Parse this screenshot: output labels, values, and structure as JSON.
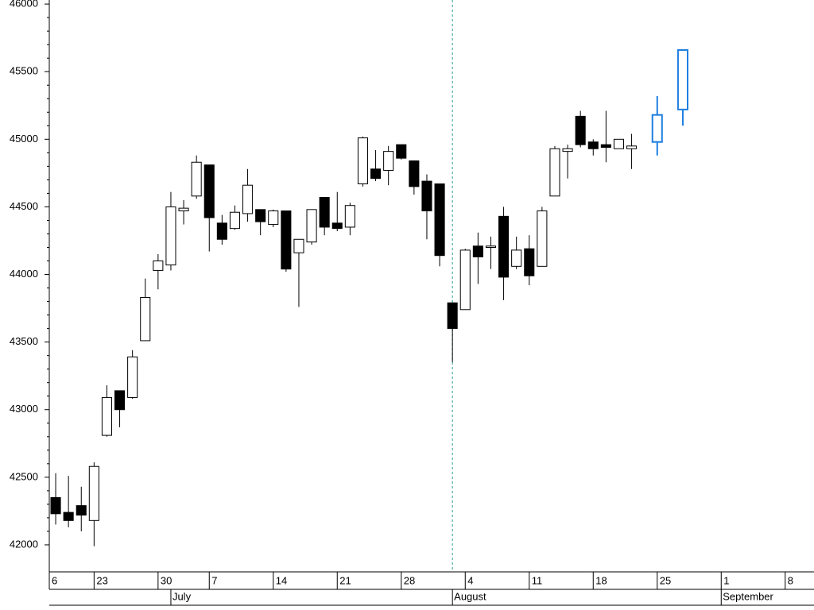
{
  "chart_data": {
    "type": "candlestick",
    "ylim": [
      41800,
      46030
    ],
    "yticks": [
      42000,
      42500,
      43000,
      43500,
      44000,
      44500,
      45000,
      45500,
      46000
    ],
    "xlim": [
      -0.5,
      59.25
    ],
    "xticks": [
      {
        "value": -0.5,
        "label": "6"
      },
      {
        "value": 3,
        "label": "23"
      },
      {
        "value": 8,
        "label": "30"
      },
      {
        "value": 12,
        "label": "7"
      },
      {
        "value": 17,
        "label": "14"
      },
      {
        "value": 22,
        "label": "21"
      },
      {
        "value": 27,
        "label": "28"
      },
      {
        "value": 32,
        "label": "4"
      },
      {
        "value": 37,
        "label": "11"
      },
      {
        "value": 42,
        "label": "18"
      },
      {
        "value": 47,
        "label": "25"
      },
      {
        "value": 52,
        "label": "1"
      },
      {
        "value": 57,
        "label": "8"
      }
    ],
    "months": [
      {
        "value": 9,
        "label": "July"
      },
      {
        "value": 31,
        "label": "August"
      },
      {
        "value": 52,
        "label": "September"
      }
    ],
    "marker_line": 31,
    "series": [
      {
        "color": "#000000",
        "x": [
          0,
          1,
          2,
          3,
          4,
          5,
          6,
          7,
          8,
          9,
          10,
          11,
          12,
          13,
          14,
          15,
          16,
          17,
          18,
          19,
          20,
          21,
          22,
          23,
          24,
          25,
          26,
          27,
          28,
          29,
          30,
          31,
          32,
          33,
          34,
          35,
          36,
          37,
          38,
          39,
          40,
          41,
          42,
          43,
          44,
          45
        ],
        "open": [
          42350,
          42240,
          42290,
          42180,
          42810,
          43140,
          43090,
          43510,
          44030,
          44070,
          44470,
          44580,
          44810,
          44380,
          44340,
          44450,
          44480,
          44370,
          44470,
          44160,
          44240,
          44570,
          44380,
          44350,
          44670,
          44780,
          44770,
          44960,
          44840,
          44690,
          44670,
          43790,
          43740,
          44210,
          44200,
          44430,
          44060,
          44190,
          44060,
          44580,
          44910,
          45170,
          44980,
          44960,
          44930,
          44930
        ],
        "close": [
          42230,
          42180,
          42220,
          42580,
          43090,
          43000,
          43390,
          43830,
          44100,
          44500,
          44490,
          44830,
          44420,
          44260,
          44460,
          44660,
          44390,
          44470,
          44040,
          44260,
          44480,
          44350,
          44340,
          44510,
          45010,
          44710,
          44910,
          44860,
          44650,
          44470,
          44140,
          43600,
          44180,
          44130,
          44210,
          43980,
          44180,
          43990,
          44470,
          44930,
          44930,
          44960,
          44930,
          44940,
          45000,
          44950
        ],
        "high": [
          42530,
          42510,
          42430,
          42610,
          43180,
          43140,
          43440,
          43970,
          44150,
          44610,
          44550,
          44880,
          44810,
          44440,
          44510,
          44780,
          44480,
          44480,
          44470,
          44260,
          44480,
          44570,
          44610,
          44530,
          45020,
          44920,
          44950,
          44960,
          44840,
          44740,
          44670,
          43790,
          44190,
          44310,
          44280,
          44500,
          44280,
          44290,
          44500,
          44950,
          44960,
          45210,
          45000,
          45210,
          45000,
          45040
        ],
        "low": [
          42150,
          42130,
          42100,
          41990,
          42800,
          42870,
          43080,
          43510,
          43890,
          44030,
          44370,
          44560,
          44170,
          44220,
          44330,
          44390,
          44290,
          44350,
          44020,
          43760,
          44220,
          44290,
          44320,
          44290,
          44650,
          44690,
          44660,
          44850,
          44590,
          44260,
          44060,
          43350,
          43740,
          43930,
          44040,
          43810,
          44040,
          43920,
          44060,
          44580,
          44710,
          44940,
          44880,
          44830,
          44930,
          44780
        ]
      },
      {
        "color": "#1e7fe0",
        "x": [
          47,
          49
        ],
        "open": [
          44980,
          45220
        ],
        "close": [
          45180,
          45660
        ],
        "high": [
          45320,
          45660
        ],
        "low": [
          44880,
          45100
        ]
      }
    ]
  }
}
